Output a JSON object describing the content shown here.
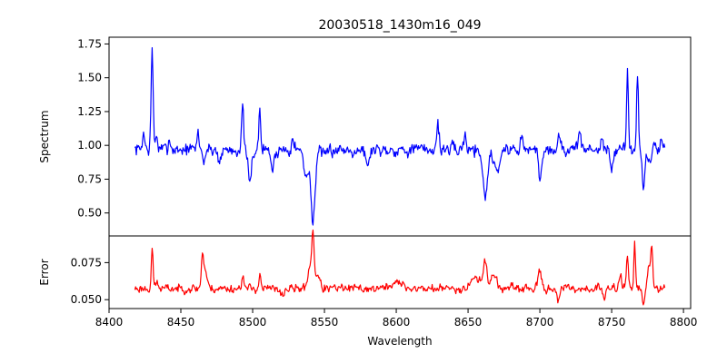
{
  "chart_data": {
    "type": "line",
    "title": "20030518_1430m16_049",
    "xlabel": "Wavelength",
    "xlim": [
      8400,
      8805
    ],
    "xticks": [
      8400,
      8450,
      8500,
      8550,
      8600,
      8650,
      8700,
      8750,
      8800
    ],
    "x_range": [
      8418,
      8787
    ],
    "grid": false,
    "panels": [
      {
        "name": "spectrum",
        "ylabel": "Spectrum",
        "ylim": [
          0.33,
          1.8
        ],
        "yticks": [
          0.5,
          0.75,
          1.0,
          1.25,
          1.5,
          1.75
        ],
        "ytick_labels": [
          "0.50",
          "0.75",
          "1.00",
          "1.25",
          "1.50",
          "1.75"
        ],
        "color": "#0000ff",
        "baseline": 0.97,
        "noise": 0.055,
        "features": [
          {
            "x": 8430,
            "depth": 0.72,
            "width": 0.7
          },
          {
            "x": 8424,
            "depth": 0.12,
            "width": 0.8
          },
          {
            "x": 8433,
            "depth": 0.1,
            "width": 0.8
          },
          {
            "x": 8442,
            "depth": 0.08,
            "width": 0.8
          },
          {
            "x": 8462,
            "depth": 0.12,
            "width": 0.8
          },
          {
            "x": 8466,
            "depth": -0.08,
            "width": 1.0
          },
          {
            "x": 8477,
            "depth": -0.08,
            "width": 1.2
          },
          {
            "x": 8493,
            "depth": 0.3,
            "width": 0.7
          },
          {
            "x": 8498,
            "depth": -0.25,
            "width": 1.2
          },
          {
            "x": 8505,
            "depth": 0.3,
            "width": 0.6
          },
          {
            "x": 8514,
            "depth": -0.15,
            "width": 1.2
          },
          {
            "x": 8528,
            "depth": 0.12,
            "width": 0.8
          },
          {
            "x": 8537,
            "depth": -0.2,
            "width": 1.5
          },
          {
            "x": 8542,
            "depth": -0.55,
            "width": 1.4
          },
          {
            "x": 8550,
            "depth": -0.07,
            "width": 1.5
          },
          {
            "x": 8580,
            "depth": -0.15,
            "width": 1.0
          },
          {
            "x": 8629,
            "depth": 0.2,
            "width": 0.8
          },
          {
            "x": 8648,
            "depth": 0.12,
            "width": 0.8
          },
          {
            "x": 8662,
            "depth": -0.35,
            "width": 1.6
          },
          {
            "x": 8670,
            "depth": -0.15,
            "width": 2.0
          },
          {
            "x": 8687,
            "depth": 0.1,
            "width": 0.8
          },
          {
            "x": 8700,
            "depth": -0.22,
            "width": 1.0
          },
          {
            "x": 8713,
            "depth": 0.12,
            "width": 0.8
          },
          {
            "x": 8728,
            "depth": 0.15,
            "width": 0.8
          },
          {
            "x": 8743,
            "depth": 0.1,
            "width": 0.8
          },
          {
            "x": 8750,
            "depth": -0.15,
            "width": 1.2
          },
          {
            "x": 8761,
            "depth": 0.65,
            "width": 0.6
          },
          {
            "x": 8768,
            "depth": 0.58,
            "width": 0.6
          },
          {
            "x": 8772,
            "depth": -0.3,
            "width": 0.9
          },
          {
            "x": 8776,
            "depth": -0.1,
            "width": 1.2
          },
          {
            "x": 8785,
            "depth": 0.1,
            "width": 0.8
          }
        ]
      },
      {
        "name": "error",
        "ylabel": "Error",
        "ylim": [
          0.044,
          0.093
        ],
        "yticks": [
          0.05,
          0.075
        ],
        "ytick_labels": [
          "0.050",
          "0.075"
        ],
        "color": "#ff0000",
        "baseline": 0.0575,
        "noise": 0.0032,
        "features": [
          {
            "x": 8430,
            "depth": 0.027,
            "width": 0.6
          },
          {
            "x": 8433,
            "depth": 0.004,
            "width": 1.0
          },
          {
            "x": 8465,
            "depth": 0.021,
            "width": 0.8
          },
          {
            "x": 8467,
            "depth": 0.012,
            "width": 1.2
          },
          {
            "x": 8493,
            "depth": 0.01,
            "width": 0.7
          },
          {
            "x": 8505,
            "depth": 0.01,
            "width": 0.7
          },
          {
            "x": 8520,
            "depth": -0.004,
            "width": 2.0
          },
          {
            "x": 8542,
            "depth": 0.032,
            "width": 0.8
          },
          {
            "x": 8540,
            "depth": 0.015,
            "width": 1.5
          },
          {
            "x": 8545,
            "depth": 0.01,
            "width": 1.5
          },
          {
            "x": 8600,
            "depth": 0.004,
            "width": 4.0
          },
          {
            "x": 8655,
            "depth": 0.008,
            "width": 3.0
          },
          {
            "x": 8662,
            "depth": 0.02,
            "width": 1.2
          },
          {
            "x": 8668,
            "depth": 0.01,
            "width": 1.8
          },
          {
            "x": 8700,
            "depth": 0.012,
            "width": 1.0
          },
          {
            "x": 8713,
            "depth": -0.009,
            "width": 0.8
          },
          {
            "x": 8745,
            "depth": -0.008,
            "width": 0.8
          },
          {
            "x": 8756,
            "depth": 0.01,
            "width": 1.0
          },
          {
            "x": 8761,
            "depth": 0.022,
            "width": 0.7
          },
          {
            "x": 8766,
            "depth": 0.032,
            "width": 0.6
          },
          {
            "x": 8772,
            "depth": -0.01,
            "width": 0.8
          },
          {
            "x": 8776,
            "depth": 0.015,
            "width": 1.0
          },
          {
            "x": 8778,
            "depth": 0.028,
            "width": 0.6
          }
        ]
      }
    ]
  }
}
